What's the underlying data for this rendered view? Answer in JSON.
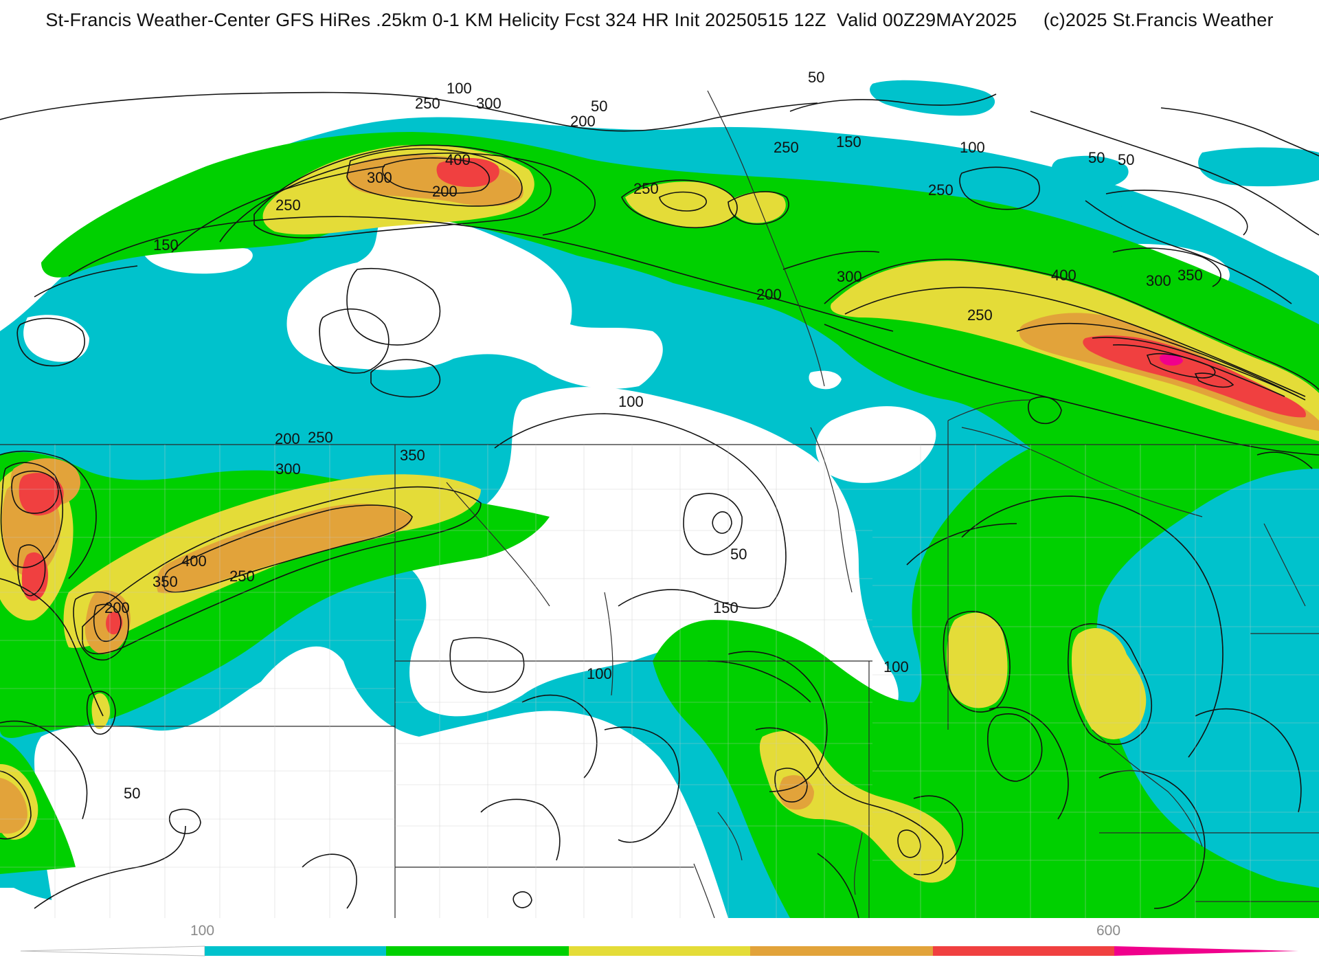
{
  "header": {
    "title": "St-Francis Weather-Center GFS HiRes .25km 0-1 KM Helicity Fcst 324 HR Init 20250515 12Z  Valid 00Z29MAY2025     (c)2025 St.Francis Weather"
  },
  "map": {
    "contour_labels": [
      "50",
      "100",
      "250",
      "300",
      "50",
      "200",
      "150",
      "100",
      "50",
      "50",
      "250",
      "300",
      "400",
      "250",
      "250",
      "200",
      "150",
      "250",
      "300",
      "400",
      "300",
      "350",
      "200",
      "250",
      "100",
      "200",
      "250",
      "350",
      "300",
      "400",
      "350",
      "250",
      "200",
      "50",
      "150",
      "100",
      "100",
      "50"
    ]
  },
  "colorbar": {
    "tick_labels": [
      "100",
      "600"
    ],
    "colors": [
      "#ffffff",
      "#00c2cc",
      "#00d000",
      "#e4dc38",
      "#e2a33a",
      "#f04040",
      "#f0008c"
    ]
  }
}
